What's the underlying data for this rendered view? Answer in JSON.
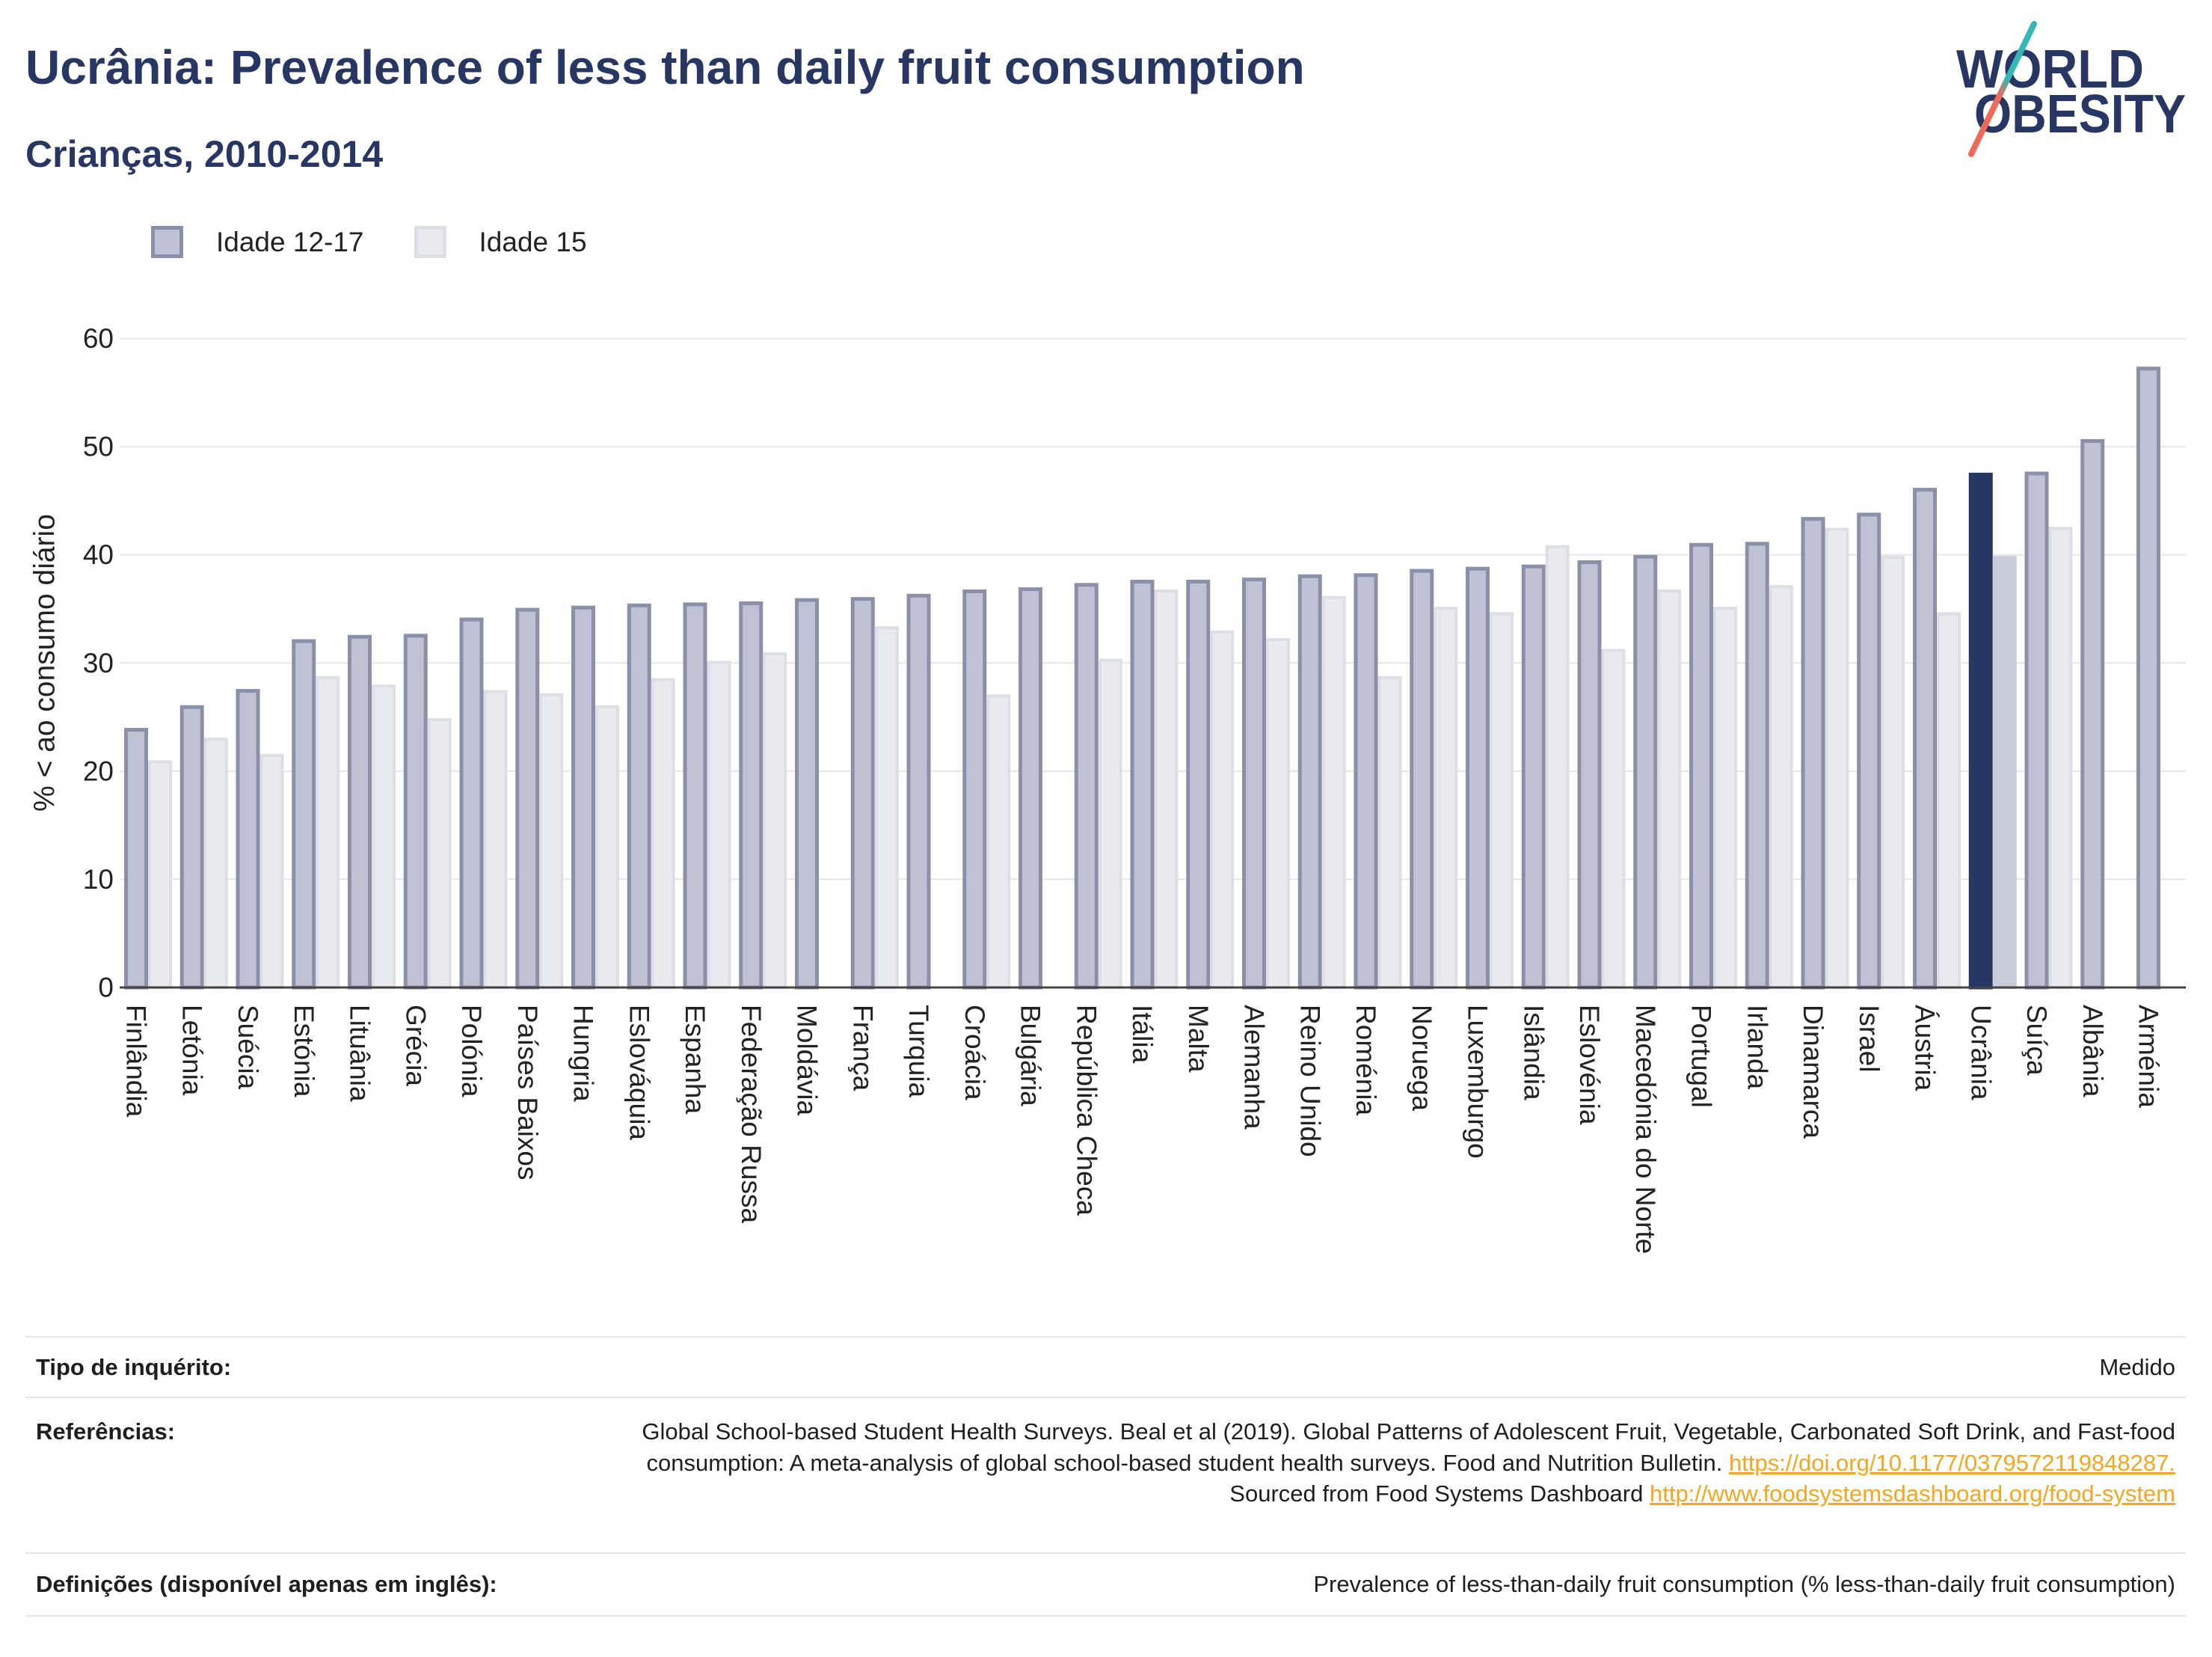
{
  "chart_data": {
    "type": "bar",
    "title": "Ucrânia: Prevalence of less than daily fruit consumption",
    "subtitle": "Crianças, 2010-2014",
    "xlabel": "",
    "ylabel": "% < ao consumo diário",
    "ylim": [
      0,
      60
    ],
    "yticks": [
      0,
      10,
      20,
      30,
      40,
      50,
      60
    ],
    "grid": true,
    "legend_position": "top-left",
    "highlight": "Ucrânia",
    "categories": [
      "Finlândia",
      "Letónia",
      "Suécia",
      "Estónia",
      "Lituânia",
      "Grécia",
      "Polónia",
      "Países Baixos",
      "Hungria",
      "Eslováquia",
      "Espanha",
      "Federação Russa",
      "Moldávia",
      "França",
      "Turquia",
      "Croácia",
      "Bulgária",
      "República Checa",
      "Itália",
      "Malta",
      "Alemanha",
      "Reino Unido",
      "Roménia",
      "Noruega",
      "Luxemburgo",
      "Islândia",
      "Eslovénia",
      "Macedónia do Norte",
      "Portugal",
      "Irlanda",
      "Dinamarca",
      "Israel",
      "Áustria",
      "Ucrânia",
      "Suíça",
      "Albânia",
      "Arménia"
    ],
    "series": [
      {
        "name": "Idade 12-17",
        "values": [
          24.0,
          26.1,
          27.6,
          32.2,
          32.6,
          32.7,
          34.2,
          35.1,
          35.3,
          35.5,
          35.6,
          35.7,
          36.0,
          36.1,
          36.4,
          36.8,
          37.0,
          37.4,
          37.7,
          37.7,
          37.9,
          38.2,
          38.3,
          38.7,
          38.9,
          39.1,
          39.5,
          40.0,
          41.1,
          41.2,
          43.5,
          43.9,
          46.2,
          47.6,
          47.7,
          50.7,
          57.4
        ],
        "fill": "#bec2d2",
        "stroke": "#8a90a9",
        "highlight_fill": "#283663",
        "highlight_stroke": "#283663"
      },
      {
        "name": "Idade 15",
        "values": [
          21.0,
          23.1,
          21.6,
          28.8,
          28.0,
          24.9,
          27.5,
          27.2,
          26.1,
          28.6,
          30.2,
          31.0,
          null,
          33.4,
          null,
          27.1,
          null,
          30.4,
          36.8,
          33.0,
          32.3,
          36.2,
          28.8,
          35.2,
          34.7,
          40.9,
          31.3,
          36.8,
          35.2,
          37.2,
          42.5,
          39.9,
          34.7,
          39.9,
          42.6,
          null,
          null
        ],
        "fill": "#e9eaef",
        "stroke": "#dddfe6",
        "highlight_fill": "#c8cbd9",
        "highlight_stroke": "#c8cbd9"
      }
    ]
  },
  "logo": {
    "line1": "WORLD",
    "line2": "OBESITY"
  },
  "footer": {
    "survey_type_label": "Tipo de inquérito:",
    "survey_type_value": "Medido",
    "references_label": "Referências:",
    "references": {
      "citation": "Global School-based Student Health Surveys. Beal et al (2019). Global Patterns of Adolescent Fruit, Vegetable, Carbonated Soft Drink, and Fast-food consumption: A meta-analysis of global school-based student health surveys. Food and Nutrition Bulletin.",
      "doi_link": "https://doi.org/10.1177/0379572119848287.",
      "source_text": "Sourced from Food Systems Dashboard",
      "source_link": "http://www.foodsystemsdashboard.org/food-system"
    },
    "definitions_label": "Definições (disponível apenas em inglês):",
    "definitions_value": "Prevalence of less-than-daily fruit consumption (% less-than-daily fruit consumption)"
  },
  "colors": {
    "title": "#283663",
    "link": "#f3a61f",
    "logo_text": "#283663",
    "logo_teal": "#36b6b4",
    "logo_coral": "#ee6a5a",
    "gridline": "#e6e6e6",
    "baseline": "#444444"
  }
}
